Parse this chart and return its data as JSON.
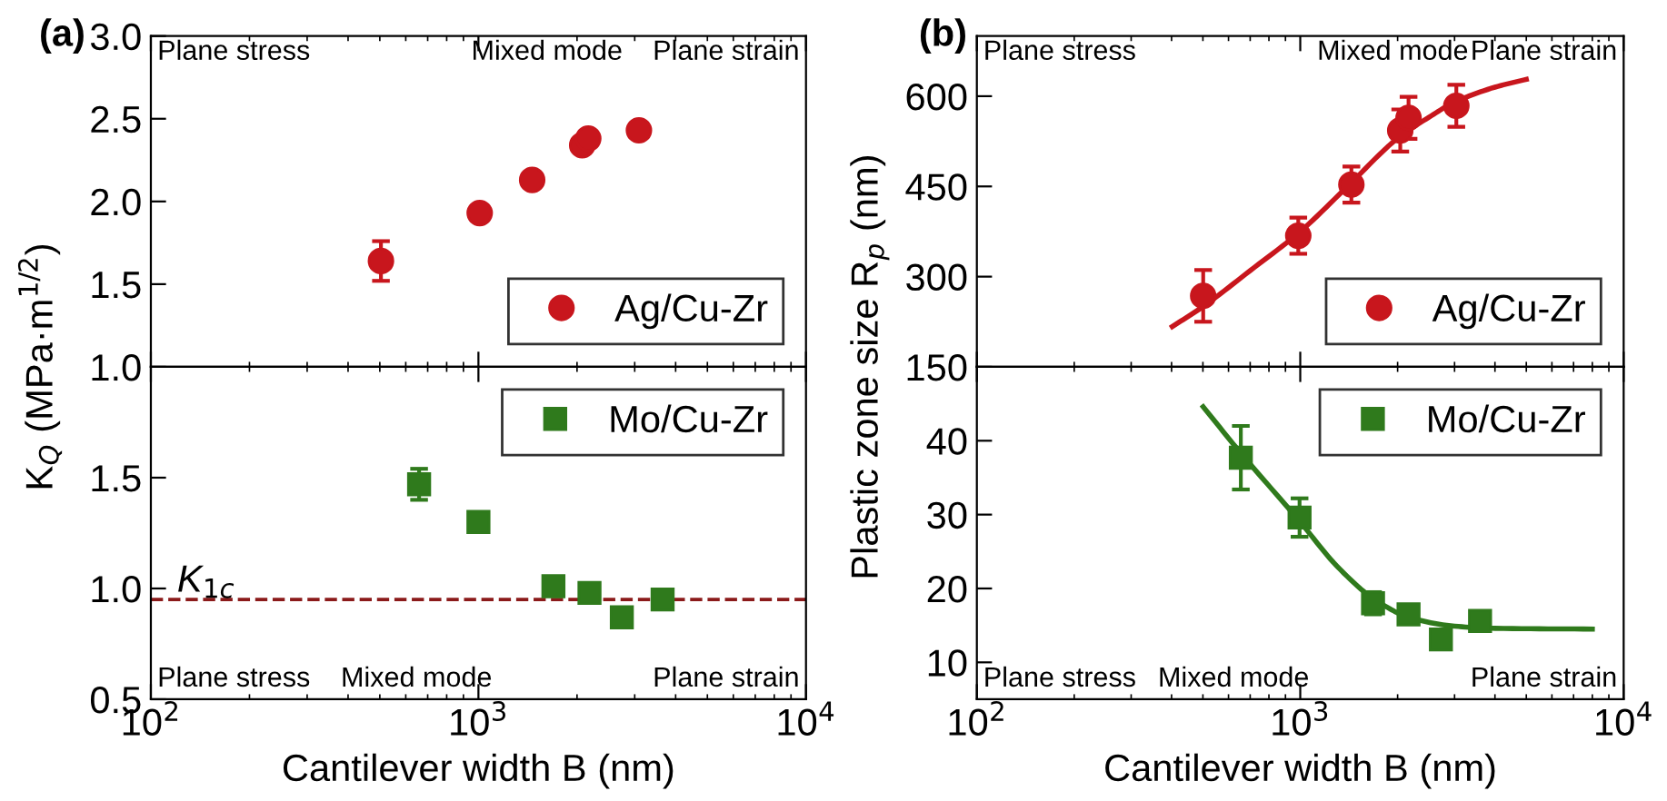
{
  "chart_data": [
    {
      "type": "scatter",
      "title": "(a)",
      "xlim": [
        100,
        10000
      ],
      "xticks": [
        {
          "value": 100,
          "label": null
        },
        {
          "value": 1000,
          "label": null
        },
        {
          "value": 10000,
          "label": null
        }
      ],
      "log": "x",
      "ylim": [
        1.0,
        3.0
      ],
      "yticks": [
        {
          "value": 1.0,
          "label": "1.0"
        },
        {
          "value": 1.5,
          "label": "1.5"
        },
        {
          "value": 2.0,
          "label": "2.0"
        },
        {
          "value": 2.5,
          "label": "2.5"
        },
        {
          "value": 3.0,
          "label": "3.0"
        }
      ],
      "tick_labels": "y",
      "legend": "bottom right",
      "marker": "circle",
      "grid": false,
      "annotations": [
        "Plane stress",
        "Mixed mode",
        "Plane strain"
      ],
      "series": [
        {
          "name": "Ag/Cu-Zr",
          "color": "#c8161d",
          "x": [
            504,
            1009,
            1459,
            2074,
            2164,
            3090
          ],
          "values": [
            1.64,
            1.93,
            2.13,
            2.34,
            2.38,
            2.43
          ],
          "errors": [
            0.12,
            null,
            null,
            null,
            null,
            null
          ]
        }
      ]
    },
    {
      "type": "scatter",
      "xlabel": "Cantilever width B (nm)",
      "ylabel": "K$_{Q}$ (MPa·m$^{1/2}$)",
      "xlim": [
        100,
        10000
      ],
      "xticks": [
        {
          "value": 100,
          "label": "10$^{2}$"
        },
        {
          "value": 1000,
          "label": "10$^{3}$"
        },
        {
          "value": 10000,
          "label": "10$^{4}$"
        }
      ],
      "log": "x",
      "ylim": [
        0.5,
        2.0
      ],
      "yticks": [
        {
          "value": 0.5,
          "label": "0.5"
        },
        {
          "value": 1.0,
          "label": "1.0"
        },
        {
          "value": 1.5,
          "label": "1.5"
        }
      ],
      "legend": "top right",
      "marker": "square",
      "grid": false,
      "annotations": [
        "Plane stress",
        "Mixed mode",
        "Plane strain"
      ],
      "ref_lines": [
        {
          "axis": "y",
          "value": 0.95,
          "label": "K$_{1c}$",
          "color": "#8b1a1a",
          "line_style": "dashed"
        }
      ],
      "series": [
        {
          "name": "Mo/Cu-Zr",
          "color": "#2f7a1c",
          "x": [
            659,
            1000,
            1694,
            2183,
            2740,
            3650
          ],
          "values": [
            1.47,
            1.3,
            1.01,
            0.98,
            0.87,
            0.95
          ],
          "errors": [
            0.07,
            null,
            null,
            null,
            null,
            null
          ]
        }
      ]
    },
    {
      "type": "scatter",
      "title": "(b)",
      "xlim": [
        100,
        10000
      ],
      "xticks": [
        {
          "value": 100,
          "label": null
        },
        {
          "value": 1000,
          "label": null
        },
        {
          "value": 10000,
          "label": null
        }
      ],
      "log": "x",
      "ylim": [
        150,
        700
      ],
      "yticks": [
        150,
        300,
        450,
        600
      ],
      "tick_labels": "y",
      "legend": "bottom right",
      "marker": "circle",
      "grid": false,
      "annotations": [
        "Plane stress",
        "Mixed mode",
        "Plane strain"
      ],
      "series": [
        {
          "name": "Ag/Cu-Zr",
          "color": "#c8161d",
          "x": [
            501,
            986,
            1439,
            2038,
            2162,
            3038
          ],
          "values": [
            268,
            368,
            453,
            543,
            564,
            584
          ],
          "errors": [
            43,
            30,
            30,
            35,
            35,
            35
          ]
        },
        {
          "type": "line",
          "marker": "none",
          "color": "#c8161d",
          "x": [
            402,
            500,
            700,
            1000,
            1400,
            2000,
            2500,
            3000,
            4000,
            5000
          ],
          "values": [
            217,
            250,
            310,
            375,
            450,
            530,
            565,
            590,
            615,
            628
          ]
        }
      ]
    },
    {
      "type": "scatter",
      "xlabel": "Cantilever width B (nm)",
      "ylabel": "Plastic zone size R$_{p}$ (nm)",
      "xlim": [
        100,
        10000
      ],
      "xticks": [
        {
          "value": 100,
          "label": "10$^{2}$"
        },
        {
          "value": 1000,
          "label": "10$^{3}$"
        },
        {
          "value": 10000,
          "label": "10$^{4}$"
        }
      ],
      "log": "x",
      "ylim": [
        5,
        50
      ],
      "yticks": [
        10,
        20,
        30,
        40
      ],
      "legend": "top right",
      "marker": "square",
      "grid": false,
      "annotations": [
        "Plane stress",
        "Mixed mode",
        "Plane strain"
      ],
      "series": [
        {
          "name": "Mo/Cu-Zr",
          "color": "#2f7a1c",
          "x": [
            655,
            995,
            1679,
            2162,
            2722,
            3597
          ],
          "values": [
            37.7,
            29.6,
            18.0,
            16.5,
            13.1,
            15.6
          ],
          "errors": [
            4.3,
            2.6,
            1.5,
            1.2,
            null,
            null
          ]
        },
        {
          "type": "line",
          "marker": "none",
          "color": "#2f7a1c",
          "x": [
            501,
            650,
            1000,
            1300,
            1700,
            2200,
            3000,
            4000,
            8000
          ],
          "values": [
            44.6,
            38.5,
            29.0,
            23.0,
            18.5,
            16.0,
            14.9,
            14.6,
            14.5
          ]
        }
      ]
    }
  ]
}
